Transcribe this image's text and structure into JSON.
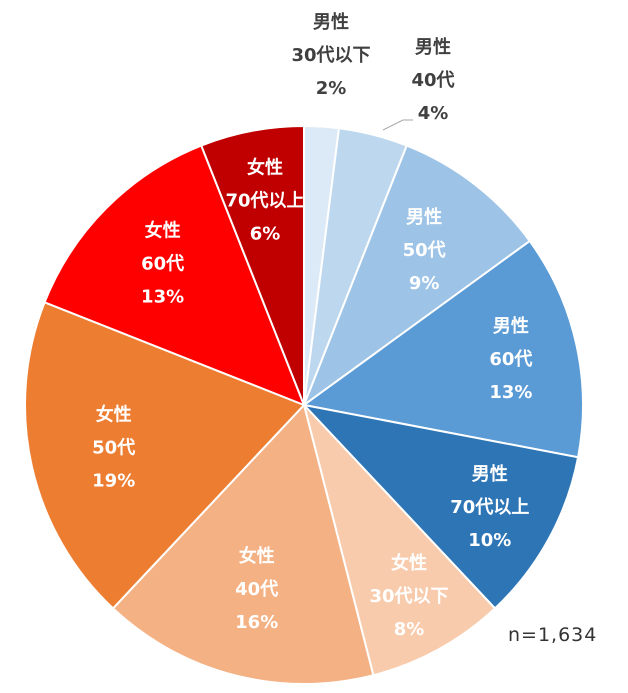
{
  "chart_data": {
    "type": "pie",
    "title": "",
    "note": "n=1,634",
    "start_angle_deg": 0,
    "direction": "clockwise",
    "slices": [
      {
        "lines": [
          "男性",
          "30代以下",
          "2%"
        ],
        "value": 2,
        "color": "#dce9f6",
        "text_color": "#404040",
        "label_pos": "outside"
      },
      {
        "lines": [
          "男性",
          "40代",
          "4%"
        ],
        "value": 4,
        "color": "#bdd7ee",
        "text_color": "#404040",
        "label_pos": "outside"
      },
      {
        "lines": [
          "男性",
          "50代",
          "9%"
        ],
        "value": 9,
        "color": "#9dc3e6",
        "text_color": "#ffffff",
        "label_pos": "inside"
      },
      {
        "lines": [
          "男性",
          "60代",
          "13%"
        ],
        "value": 13,
        "color": "#5b9bd5",
        "text_color": "#ffffff",
        "label_pos": "inside"
      },
      {
        "lines": [
          "男性",
          "70代以上",
          "10%"
        ],
        "value": 10,
        "color": "#2e75b6",
        "text_color": "#ffffff",
        "label_pos": "inside"
      },
      {
        "lines": [
          "女性",
          "30代以下",
          "8%"
        ],
        "value": 8,
        "color": "#f8cbad",
        "text_color": "#ffffff",
        "label_pos": "inside"
      },
      {
        "lines": [
          "女性",
          "40代",
          "16%"
        ],
        "value": 16,
        "color": "#f4b183",
        "text_color": "#ffffff",
        "label_pos": "inside"
      },
      {
        "lines": [
          "女性",
          "50代",
          "19%"
        ],
        "value": 19,
        "color": "#ed7d31",
        "text_color": "#ffffff",
        "label_pos": "inside"
      },
      {
        "lines": [
          "女性",
          "60代",
          "13%"
        ],
        "value": 13,
        "color": "#ff0000",
        "text_color": "#ffffff",
        "label_pos": "inside"
      },
      {
        "lines": [
          "女性",
          "70代以上",
          "6%"
        ],
        "value": 6,
        "color": "#c00000",
        "text_color": "#ffffff",
        "label_pos": "inside"
      }
    ]
  }
}
